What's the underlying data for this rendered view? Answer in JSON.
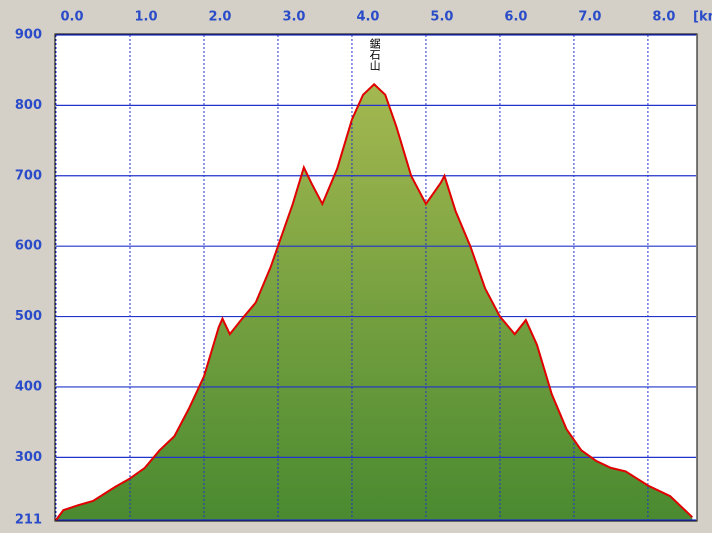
{
  "chart_data": {
    "type": "area",
    "x_label": "[km",
    "x": [
      0.0,
      0.1,
      0.3,
      0.5,
      0.8,
      1.0,
      1.2,
      1.4,
      1.6,
      1.8,
      2.0,
      2.1,
      2.2,
      2.25,
      2.35,
      2.5,
      2.7,
      2.9,
      3.0,
      3.2,
      3.35,
      3.45,
      3.6,
      3.8,
      4.0,
      4.15,
      4.3,
      4.45,
      4.6,
      4.8,
      5.0,
      5.2,
      5.25,
      5.4,
      5.6,
      5.8,
      6.0,
      6.2,
      6.35,
      6.5,
      6.7,
      6.9,
      7.1,
      7.3,
      7.5,
      7.7,
      8.0,
      8.3,
      8.5,
      8.6
    ],
    "series": [
      {
        "color": "#e00000",
        "fill_top": "#a4b850",
        "fill_bottom": "#4a8a30",
        "values": [
          211,
          225,
          232,
          238,
          258,
          270,
          285,
          310,
          330,
          370,
          415,
          450,
          485,
          497,
          475,
          495,
          520,
          570,
          600,
          660,
          712,
          690,
          660,
          710,
          780,
          815,
          830,
          815,
          770,
          700,
          660,
          690,
          700,
          650,
          600,
          540,
          500,
          475,
          495,
          460,
          390,
          340,
          310,
          295,
          285,
          280,
          260,
          245,
          225,
          215
        ]
      }
    ],
    "annotations": [
      {
        "text": "鋸石山",
        "x": 4.3
      }
    ],
    "xlim": [
      0,
      8.65
    ],
    "ylim": [
      211,
      900
    ],
    "xticks": [
      {
        "value": 0,
        "label": "0.0"
      },
      {
        "value": 1,
        "label": "1.0"
      },
      {
        "value": 2,
        "label": "2.0"
      },
      {
        "value": 3,
        "label": "3.0"
      },
      {
        "value": 4,
        "label": "4.0"
      },
      {
        "value": 5,
        "label": "5.0"
      },
      {
        "value": 6,
        "label": "6.0"
      },
      {
        "value": 7,
        "label": "7.0"
      },
      {
        "value": 8,
        "label": "8.0"
      }
    ],
    "yticks": [
      211,
      300,
      400,
      500,
      600,
      700,
      800,
      900
    ],
    "grid": true,
    "grid_color": "#2233cc"
  }
}
